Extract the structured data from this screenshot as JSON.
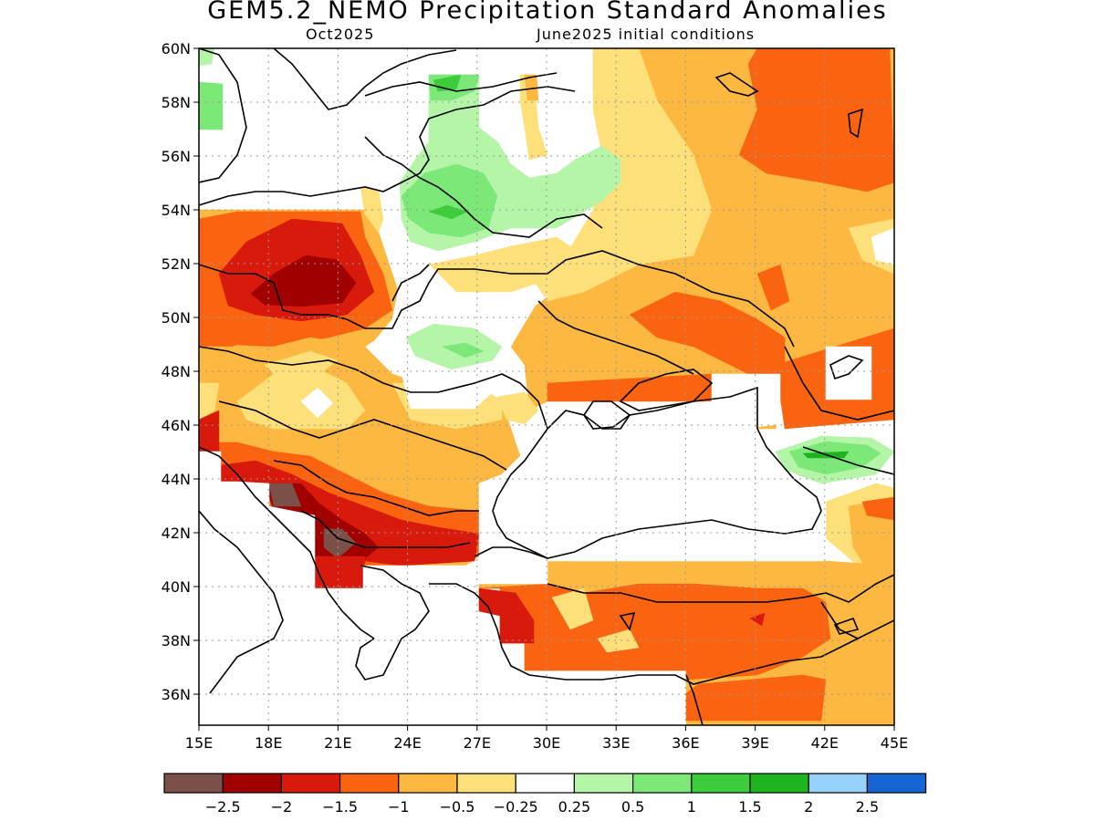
{
  "title": "GEM5.2_NEMO Precipitation Standard Anomalies",
  "subtitle_left": "Oct2025",
  "subtitle_right": "June2025 initial conditions",
  "lon_ticks": [
    "15E",
    "18E",
    "21E",
    "24E",
    "27E",
    "30E",
    "33E",
    "36E",
    "39E",
    "42E",
    "45E"
  ],
  "lat_ticks": [
    "60N",
    "58N",
    "56N",
    "54N",
    "52N",
    "50N",
    "48N",
    "46N",
    "44N",
    "42N",
    "40N",
    "38N",
    "36N"
  ],
  "colors": {
    "c_m3": "#7a5048",
    "c_m25": "#a00000",
    "c_m2": "#d81a0c",
    "c_m15": "#fa6410",
    "c_m1": "#fcb840",
    "c_m05": "#fde07a",
    "c_0": "#ffffff",
    "c_p05": "#b4f5a8",
    "c_p1": "#7be878",
    "c_p15": "#3ccc3c",
    "c_p2": "#1eb41e",
    "c_p25": "#96d2fa",
    "c_p3": "#1464d2"
  },
  "colorbar": {
    "labels": [
      "−2.5",
      "−2",
      "−1.5",
      "−1",
      "−0.5",
      "−0.25",
      "0.25",
      "0.5",
      "1",
      "1.5",
      "2",
      "2.5"
    ],
    "colors": [
      "#7a5048",
      "#a00000",
      "#d81a0c",
      "#fa6410",
      "#fcb840",
      "#fde07a",
      "#ffffff",
      "#b4f5a8",
      "#7be878",
      "#3ccc3c",
      "#1eb41e",
      "#96d2fa",
      "#1464d2"
    ]
  }
}
